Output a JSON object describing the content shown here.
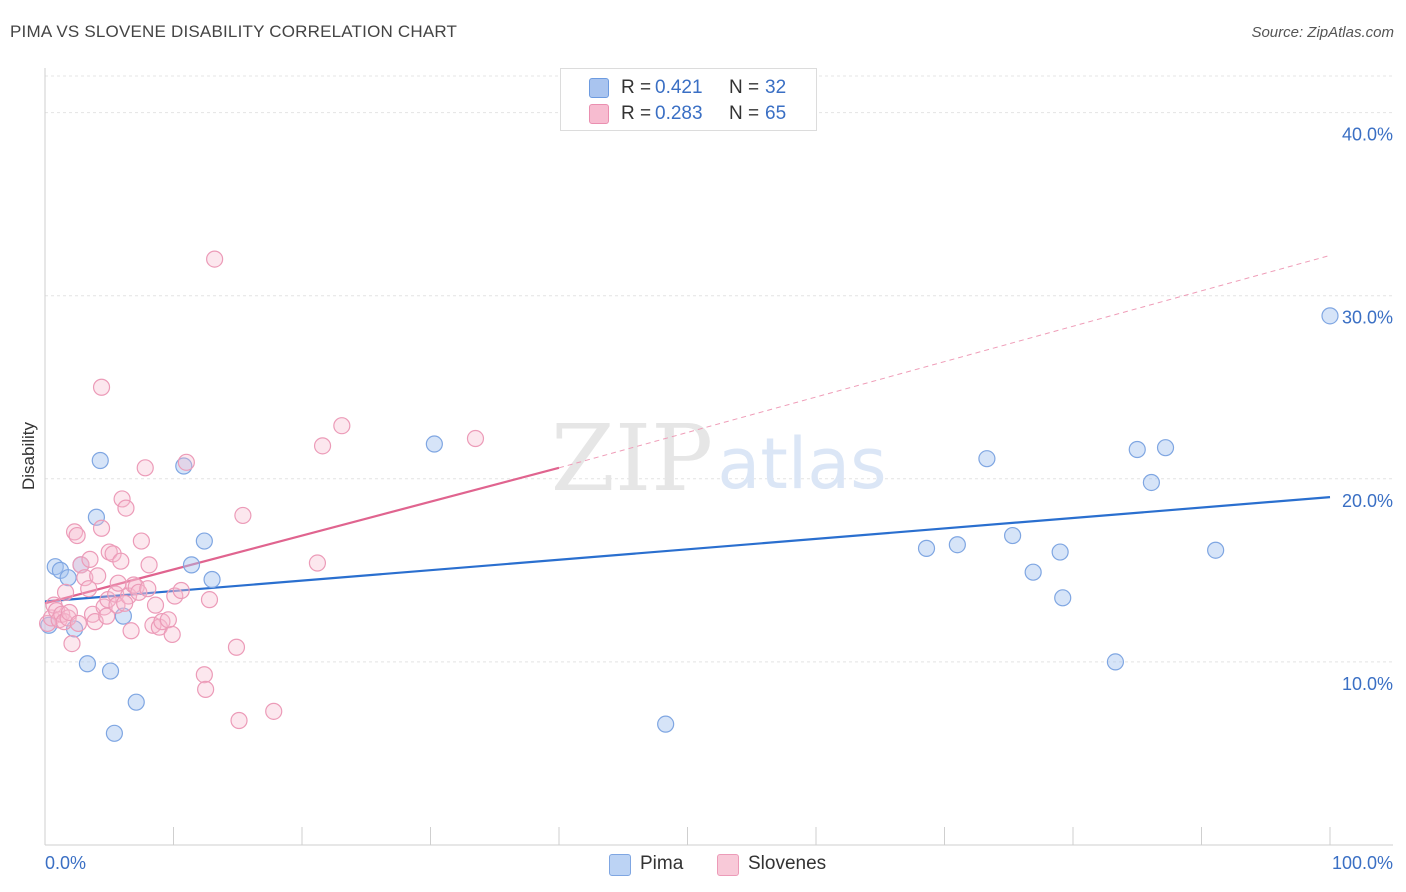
{
  "header": {
    "title": "PIMA VS SLOVENE DISABILITY CORRELATION CHART",
    "source": "Source: ZipAtlas.com"
  },
  "watermark": {
    "part1": "ZIP",
    "part2": "atlas"
  },
  "legend": {
    "rows": [
      {
        "r_label": "R =",
        "r_value": "0.421",
        "n_label": "N =",
        "n_value": "32",
        "color": "#a9c4ef",
        "border": "#6d9be0"
      },
      {
        "r_label": "R =",
        "r_value": "0.283",
        "n_label": "N =",
        "n_value": "65",
        "color": "#f7bcd0",
        "border": "#ea8fb0"
      }
    ]
  },
  "bottom_legend": [
    {
      "label": "Pima",
      "color": "#bcd3f4",
      "border": "#7fa6e2"
    },
    {
      "label": "Slovenes",
      "color": "#f8c9d8",
      "border": "#ec9bb8"
    }
  ],
  "chart_data": {
    "type": "scatter",
    "title": "PIMA VS SLOVENE DISABILITY CORRELATION CHART",
    "xlabel": "",
    "ylabel": "Disability",
    "xlim": [
      0,
      100
    ],
    "ylim": [
      0,
      42
    ],
    "x_tick_labels": [
      {
        "value": 0,
        "label": "0.0%"
      },
      {
        "value": 100,
        "label": "100.0%"
      }
    ],
    "y_tick_labels": [
      {
        "value": 10,
        "label": "10.0%"
      },
      {
        "value": 20,
        "label": "20.0%"
      },
      {
        "value": 30,
        "label": "30.0%"
      },
      {
        "value": 40,
        "label": "40.0%"
      }
    ],
    "grid": true,
    "series": [
      {
        "name": "Pima",
        "color": "#7fa6e2",
        "fill": "rgba(164,196,240,0.45)",
        "trend_color": "#2a6fcf",
        "trend": {
          "x0": 0,
          "y0": 13.3,
          "x1": 100,
          "y1": 19.0
        },
        "points": [
          {
            "x": 0.3,
            "y": 12.0
          },
          {
            "x": 0.8,
            "y": 15.2
          },
          {
            "x": 1.2,
            "y": 15.0
          },
          {
            "x": 1.8,
            "y": 14.6
          },
          {
            "x": 2.3,
            "y": 11.8
          },
          {
            "x": 2.8,
            "y": 15.3
          },
          {
            "x": 3.3,
            "y": 9.9
          },
          {
            "x": 4.0,
            "y": 17.9
          },
          {
            "x": 4.3,
            "y": 21.0
          },
          {
            "x": 5.1,
            "y": 9.5
          },
          {
            "x": 5.4,
            "y": 6.1
          },
          {
            "x": 6.1,
            "y": 12.5
          },
          {
            "x": 7.1,
            "y": 7.8
          },
          {
            "x": 10.8,
            "y": 20.7
          },
          {
            "x": 11.4,
            "y": 15.3
          },
          {
            "x": 12.4,
            "y": 16.6
          },
          {
            "x": 13.0,
            "y": 14.5
          },
          {
            "x": 30.3,
            "y": 21.9
          },
          {
            "x": 48.3,
            "y": 6.6
          },
          {
            "x": 68.6,
            "y": 16.2
          },
          {
            "x": 71.0,
            "y": 16.4
          },
          {
            "x": 73.3,
            "y": 21.1
          },
          {
            "x": 75.3,
            "y": 16.9
          },
          {
            "x": 76.9,
            "y": 14.9
          },
          {
            "x": 79.0,
            "y": 16.0
          },
          {
            "x": 79.2,
            "y": 13.5
          },
          {
            "x": 83.3,
            "y": 10.0
          },
          {
            "x": 85.0,
            "y": 21.6
          },
          {
            "x": 86.1,
            "y": 19.8
          },
          {
            "x": 87.2,
            "y": 21.7
          },
          {
            "x": 91.1,
            "y": 16.1
          },
          {
            "x": 100.0,
            "y": 28.9
          }
        ]
      },
      {
        "name": "Slovenes",
        "color": "#ec9bb8",
        "fill": "rgba(247,185,205,0.35)",
        "trend_color": "#e0648f",
        "trend": {
          "x0": 0,
          "y0": 13.2,
          "x1": 40,
          "y1": 20.6
        },
        "trend_extension": {
          "x0": 40,
          "y0": 20.6,
          "x1": 100,
          "y1": 32.2
        },
        "points": [
          {
            "x": 0.2,
            "y": 12.1
          },
          {
            "x": 0.5,
            "y": 12.4
          },
          {
            "x": 0.7,
            "y": 13.1
          },
          {
            "x": 0.9,
            "y": 12.8
          },
          {
            "x": 1.1,
            "y": 12.3
          },
          {
            "x": 1.3,
            "y": 12.6
          },
          {
            "x": 1.5,
            "y": 12.2
          },
          {
            "x": 1.6,
            "y": 13.8
          },
          {
            "x": 1.8,
            "y": 12.4
          },
          {
            "x": 2.1,
            "y": 11.0
          },
          {
            "x": 2.3,
            "y": 17.1
          },
          {
            "x": 2.5,
            "y": 16.9
          },
          {
            "x": 2.8,
            "y": 15.3
          },
          {
            "x": 3.1,
            "y": 14.6
          },
          {
            "x": 3.4,
            "y": 14.0
          },
          {
            "x": 3.5,
            "y": 15.6
          },
          {
            "x": 3.7,
            "y": 12.6
          },
          {
            "x": 3.9,
            "y": 12.2
          },
          {
            "x": 4.1,
            "y": 14.7
          },
          {
            "x": 4.4,
            "y": 17.3
          },
          {
            "x": 4.4,
            "y": 25.0
          },
          {
            "x": 4.6,
            "y": 13.0
          },
          {
            "x": 4.8,
            "y": 12.5
          },
          {
            "x": 4.9,
            "y": 13.4
          },
          {
            "x": 5.0,
            "y": 16.0
          },
          {
            "x": 5.3,
            "y": 15.9
          },
          {
            "x": 5.5,
            "y": 13.7
          },
          {
            "x": 5.6,
            "y": 13.1
          },
          {
            "x": 5.7,
            "y": 14.3
          },
          {
            "x": 5.9,
            "y": 15.5
          },
          {
            "x": 6.0,
            "y": 18.9
          },
          {
            "x": 6.3,
            "y": 18.4
          },
          {
            "x": 6.5,
            "y": 13.6
          },
          {
            "x": 6.7,
            "y": 11.7
          },
          {
            "x": 6.9,
            "y": 14.2
          },
          {
            "x": 7.1,
            "y": 14.1
          },
          {
            "x": 7.3,
            "y": 13.8
          },
          {
            "x": 7.5,
            "y": 16.6
          },
          {
            "x": 7.8,
            "y": 20.6
          },
          {
            "x": 8.1,
            "y": 15.3
          },
          {
            "x": 8.4,
            "y": 12.0
          },
          {
            "x": 8.6,
            "y": 13.1
          },
          {
            "x": 8.9,
            "y": 11.9
          },
          {
            "x": 9.1,
            "y": 12.2
          },
          {
            "x": 9.6,
            "y": 12.3
          },
          {
            "x": 9.9,
            "y": 11.5
          },
          {
            "x": 10.1,
            "y": 13.6
          },
          {
            "x": 10.6,
            "y": 13.9
          },
          {
            "x": 11.0,
            "y": 20.9
          },
          {
            "x": 12.4,
            "y": 9.3
          },
          {
            "x": 12.5,
            "y": 8.5
          },
          {
            "x": 12.8,
            "y": 13.4
          },
          {
            "x": 13.2,
            "y": 32.0
          },
          {
            "x": 14.9,
            "y": 10.8
          },
          {
            "x": 15.1,
            "y": 6.8
          },
          {
            "x": 15.4,
            "y": 18.0
          },
          {
            "x": 17.8,
            "y": 7.3
          },
          {
            "x": 21.2,
            "y": 15.4
          },
          {
            "x": 21.6,
            "y": 21.8
          },
          {
            "x": 23.1,
            "y": 22.9
          },
          {
            "x": 33.5,
            "y": 22.2
          },
          {
            "x": 1.9,
            "y": 12.7
          },
          {
            "x": 2.6,
            "y": 12.1
          },
          {
            "x": 6.2,
            "y": 13.2
          },
          {
            "x": 8.0,
            "y": 14.0
          }
        ]
      }
    ]
  }
}
